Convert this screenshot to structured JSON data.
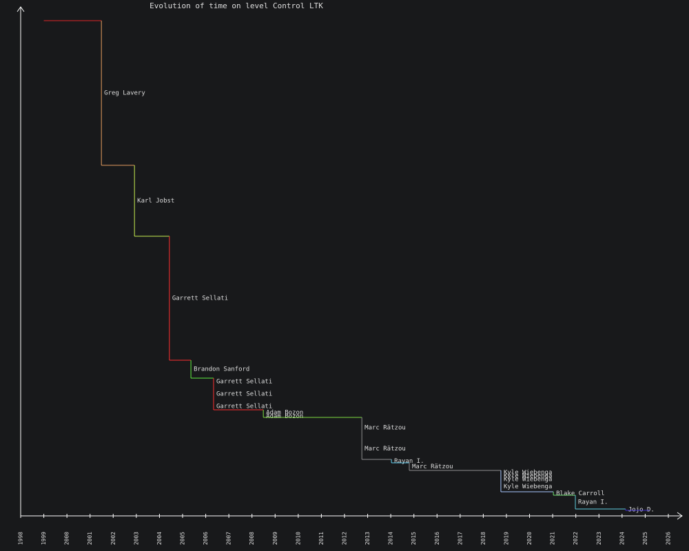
{
  "chart_data": {
    "type": "step",
    "title": "Evolution of time on level Control LTK",
    "x": [
      1999,
      2001.49,
      2002.92,
      2004.43,
      2005.36,
      2006.34,
      2006.34,
      2006.34,
      2008.49,
      2008.49,
      2012.75,
      2012.75,
      2014.03,
      2014.8,
      2018.76,
      2018.76,
      2018.76,
      2018.76,
      2021.03,
      2021.98,
      2024.15,
      2025.2
    ],
    "values": [
      719,
      509,
      406,
      226,
      200,
      190,
      164,
      154,
      146,
      143,
      113,
      82,
      77,
      66,
      60,
      56,
      50,
      35,
      30,
      10,
      8,
      8
    ],
    "labels": [
      null,
      "Greg Lavery",
      "Karl Jobst",
      "Garrett Sellati",
      "Brandon Sanford",
      "Garrett Sellati",
      "Garrett Sellati",
      "Garrett Sellati",
      "Adam Bozon",
      "Adam Bozon",
      "Marc Rätzou",
      "Marc Rätzou",
      "Rayan I.",
      "Marc Rätzou",
      "Kyle Wiebenga",
      "Kyle Wiebenga",
      "Kyle Wiebenga",
      "Kyle Wiebenga",
      "Blake Carroll",
      "Rayan I.",
      "Jojo D.",
      null
    ],
    "colors": [
      "#e02828",
      "#e8a060",
      "#c8f050",
      "#ff3030",
      "#60f040",
      "#ff3030",
      "#ff3030",
      "#ff3030",
      "#80e040",
      "#80e040",
      "#909090",
      "#909090",
      "#60d0f0",
      "#909090",
      "#a8c8ff",
      "#a8c8ff",
      "#a8c8ff",
      "#a8c8ff",
      "#70e070",
      "#60d0e0",
      "#4030d0",
      "#4030d0"
    ],
    "xlim": [
      1998,
      2026
    ],
    "ylim": [
      0,
      720
    ],
    "xticks": [
      1998,
      1999,
      2000,
      2001,
      2002,
      2003,
      2004,
      2005,
      2006,
      2007,
      2008,
      2009,
      2010,
      2011,
      2012,
      2013,
      2014,
      2015,
      2016,
      2017,
      2018,
      2019,
      2020,
      2021,
      2022,
      2023,
      2024,
      2025,
      2026
    ]
  }
}
